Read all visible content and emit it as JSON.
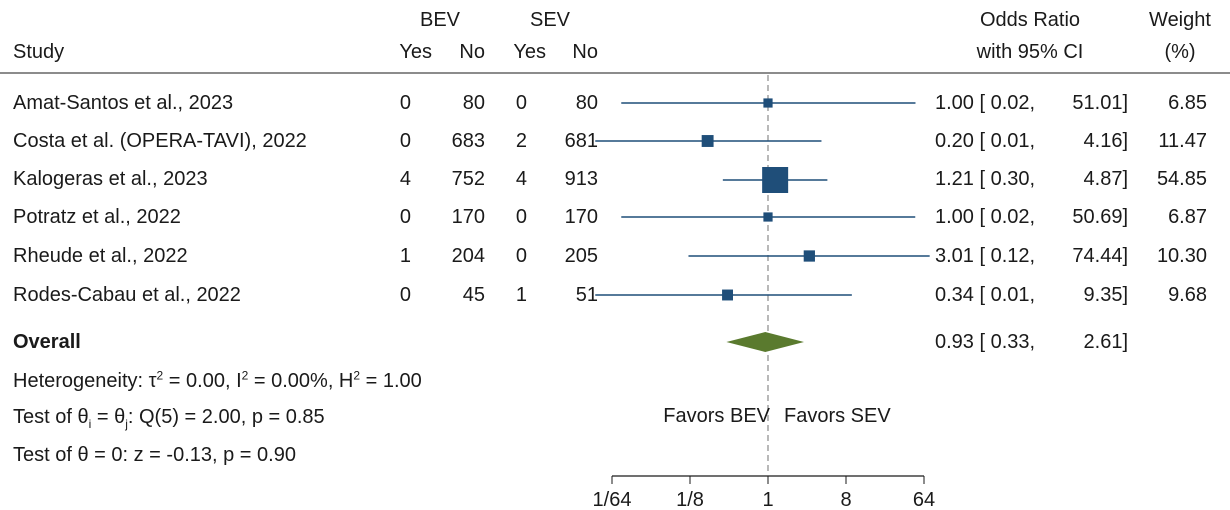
{
  "header": {
    "group1": "BEV",
    "group2": "SEV",
    "study": "Study",
    "yes": "Yes",
    "no": "No",
    "or_line1": "Odds Ratio",
    "or_line2": "with 95% CI",
    "weight_line1": "Weight",
    "weight_line2": "(%)"
  },
  "rows": [
    {
      "study": "Amat-Santos et al., 2023",
      "bev_yes": "0",
      "bev_no": "80",
      "sev_yes": "0",
      "sev_no": "80",
      "or": "1.00",
      "lo": "0.02,",
      "hi": "51.01]",
      "weight": "6.85"
    },
    {
      "study": "Costa et al. (OPERA-TAVI), 2022",
      "bev_yes": "0",
      "bev_no": "683",
      "sev_yes": "2",
      "sev_no": "681",
      "or": "0.20",
      "lo": "0.01,",
      "hi": "4.16]",
      "weight": "11.47"
    },
    {
      "study": "Kalogeras et al., 2023",
      "bev_yes": "4",
      "bev_no": "752",
      "sev_yes": "4",
      "sev_no": "913",
      "or": "1.21",
      "lo": "0.30,",
      "hi": "4.87]",
      "weight": "54.85"
    },
    {
      "study": "Potratz et al., 2022",
      "bev_yes": "0",
      "bev_no": "170",
      "sev_yes": "0",
      "sev_no": "170",
      "or": "1.00",
      "lo": "0.02,",
      "hi": "50.69]",
      "weight": "6.87"
    },
    {
      "study": "Rheude et al., 2022",
      "bev_yes": "1",
      "bev_no": "204",
      "sev_yes": "0",
      "sev_no": "205",
      "or": "3.01",
      "lo": "0.12,",
      "hi": "74.44]",
      "weight": "10.30"
    },
    {
      "study": "Rodes-Cabau et al., 2022",
      "bev_yes": "0",
      "bev_no": "45",
      "sev_yes": "1",
      "sev_no": "51",
      "or": "0.34",
      "lo": "0.01,",
      "hi": "9.35]",
      "weight": "9.68"
    }
  ],
  "overall": {
    "label": "Overall",
    "or": "0.93",
    "lo": "0.33,",
    "hi": "2.61]"
  },
  "stats": {
    "het_a": "Heterogeneity: τ",
    "het_b": " = 0.00, I",
    "het_c": " = 0.00%, H",
    "het_d": " = 1.00",
    "sup2": "2",
    "test1_a": "Test of θ",
    "test1_i": "i",
    "test1_b": " = θ",
    "test1_j": "j",
    "test1_c": ": Q(5) = 2.00, p = 0.85",
    "test2": "Test of θ = 0: z = -0.13, p = 0.90"
  },
  "favors": {
    "left": "Favors BEV",
    "right": "Favors SEV"
  },
  "colors": {
    "marker": "#1f4e79",
    "diamond": "#5a7a2e",
    "text": "#1a1a1a",
    "refline": "#8a8a8a"
  },
  "chart_data": {
    "type": "forest",
    "x_scale": "log2",
    "xlim": [
      0.015625,
      64
    ],
    "ticks": [
      {
        "value": 0.015625,
        "label": "1/64"
      },
      {
        "value": 0.125,
        "label": "1/8"
      },
      {
        "value": 1,
        "label": "1"
      },
      {
        "value": 8,
        "label": "8"
      },
      {
        "value": 64,
        "label": "64"
      }
    ],
    "reference_value": 1,
    "studies": [
      {
        "name": "Amat-Santos et al., 2023",
        "or": 1.0,
        "lo": 0.02,
        "hi": 51.01,
        "weight": 6.85
      },
      {
        "name": "Costa et al. (OPERA-TAVI), 2022",
        "or": 0.2,
        "lo": 0.01,
        "hi": 4.16,
        "weight": 11.47
      },
      {
        "name": "Kalogeras et al., 2023",
        "or": 1.21,
        "lo": 0.3,
        "hi": 4.87,
        "weight": 54.85
      },
      {
        "name": "Potratz et al., 2022",
        "or": 1.0,
        "lo": 0.02,
        "hi": 50.69,
        "weight": 6.87
      },
      {
        "name": "Rheude et al., 2022",
        "or": 3.01,
        "lo": 0.12,
        "hi": 74.44,
        "weight": 10.3
      },
      {
        "name": "Rodes-Cabau et al., 2022",
        "or": 0.34,
        "lo": 0.01,
        "hi": 9.35,
        "weight": 9.68
      }
    ],
    "overall": {
      "or": 0.93,
      "lo": 0.33,
      "hi": 2.61
    }
  }
}
